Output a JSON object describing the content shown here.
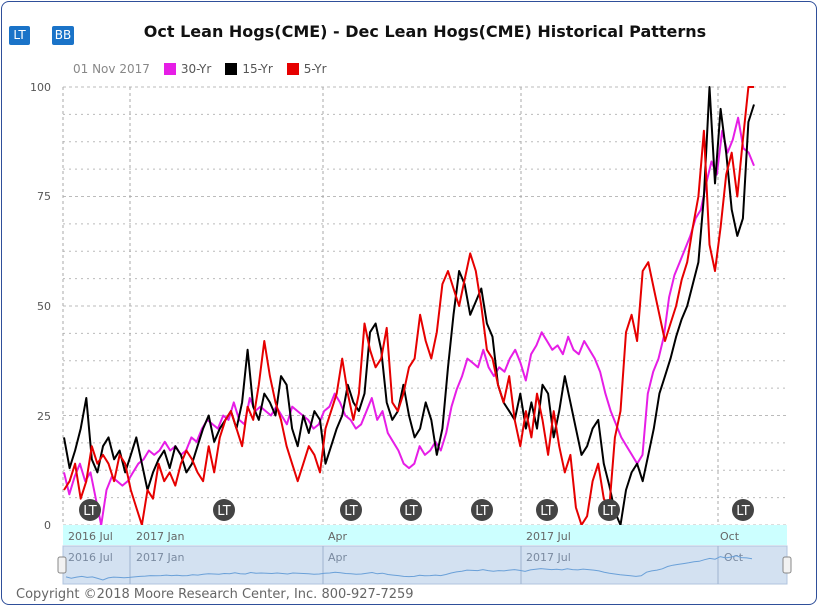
{
  "buttons": {
    "lt": "LT",
    "bb": "BB"
  },
  "title": "Oct Lean Hogs(CME) - Dec Lean Hogs(CME) Historical Patterns",
  "legend": {
    "date": "01 Nov 2017",
    "items": [
      "30-Yr",
      "15-Yr",
      "5-Yr"
    ]
  },
  "colors": {
    "s30": "#e61ee6",
    "s15": "#000000",
    "s5": "#e60000",
    "band": "#ccffff",
    "nav": "#b8cde8"
  },
  "axis": {
    "y_ticks": [
      "100",
      "75",
      "50",
      "25",
      "0"
    ],
    "x_ticks": [
      "2016 Jul",
      "2017 Jan",
      "Apr",
      "2017 Jul",
      "Oct"
    ],
    "nav_ticks": [
      "2016 Jul",
      "2017 Jan",
      "Apr",
      "2017 Jul",
      "Oct"
    ]
  },
  "markers": [
    "LT",
    "LT",
    "LT",
    "LT",
    "LT",
    "LT",
    "LT",
    "LT"
  ],
  "copyright": "Copyright ©2018 Moore Research Center, Inc. 800-927-7259",
  "chart_data": {
    "type": "line",
    "ylim": [
      0,
      100
    ],
    "x_ticks": [
      "2016 Jul",
      "2017 Jan",
      "Apr",
      "2017 Jul",
      "Oct"
    ],
    "series": [
      {
        "name": "30-Yr",
        "values": [
          12,
          7,
          11,
          14,
          10,
          12,
          6,
          0,
          8,
          11,
          10,
          9,
          10,
          12,
          14,
          15,
          17,
          16,
          17,
          19,
          17,
          18,
          16,
          17,
          20,
          19,
          22,
          24,
          23,
          22,
          25,
          24,
          28,
          24,
          23,
          29,
          26,
          27,
          26,
          25,
          27,
          25,
          23,
          27,
          26,
          25,
          24,
          22,
          23,
          26,
          27,
          30,
          28,
          25,
          24,
          22,
          23,
          26,
          29,
          24,
          26,
          21,
          19,
          17,
          14,
          13,
          14,
          18,
          16,
          17,
          19,
          17,
          21,
          27,
          31,
          34,
          38,
          37,
          36,
          40,
          36,
          34,
          36,
          35,
          38,
          40,
          37,
          33,
          39,
          41,
          44,
          42,
          40,
          41,
          39,
          43,
          40,
          39,
          42,
          40,
          38,
          35,
          30,
          26,
          23,
          20,
          18,
          16,
          14,
          16,
          30,
          35,
          38,
          43,
          52,
          57,
          60,
          63,
          66,
          70,
          72,
          78,
          83,
          80,
          90,
          85,
          88,
          93,
          86,
          85,
          82
        ]
      },
      {
        "name": "15-Yr",
        "values": [
          20,
          13,
          17,
          22,
          29,
          15,
          12,
          18,
          20,
          15,
          17,
          12,
          16,
          20,
          14,
          8,
          12,
          15,
          17,
          13,
          18,
          16,
          12,
          14,
          18,
          22,
          25,
          19,
          22,
          24,
          26,
          22,
          28,
          40,
          27,
          24,
          30,
          28,
          25,
          34,
          32,
          22,
          18,
          25,
          21,
          26,
          24,
          14,
          18,
          22,
          25,
          32,
          28,
          26,
          30,
          44,
          46,
          40,
          28,
          24,
          26,
          32,
          25,
          20,
          22,
          28,
          24,
          16,
          22,
          36,
          48,
          58,
          55,
          48,
          51,
          54,
          46,
          43,
          32,
          28,
          26,
          24,
          30,
          22,
          28,
          22,
          32,
          30,
          20,
          26,
          34,
          28,
          22,
          16,
          18,
          22,
          24,
          14,
          9,
          3,
          0,
          8,
          12,
          14,
          10,
          16,
          22,
          30,
          34,
          38,
          43,
          47,
          50,
          55,
          60,
          75,
          100,
          78,
          95,
          85,
          72,
          66,
          70,
          92,
          96
        ]
      },
      {
        "name": "5-Yr",
        "values": [
          8,
          10,
          14,
          6,
          10,
          18,
          14,
          16,
          14,
          10,
          16,
          14,
          8,
          4,
          0,
          8,
          6,
          14,
          10,
          12,
          9,
          14,
          17,
          15,
          12,
          10,
          18,
          12,
          20,
          24,
          26,
          22,
          18,
          27,
          24,
          32,
          42,
          34,
          28,
          24,
          18,
          14,
          10,
          14,
          18,
          16,
          12,
          22,
          26,
          30,
          38,
          30,
          24,
          30,
          46,
          40,
          36,
          38,
          45,
          28,
          26,
          30,
          36,
          38,
          48,
          42,
          38,
          44,
          55,
          58,
          54,
          50,
          56,
          62,
          58,
          50,
          40,
          38,
          32,
          28,
          34,
          24,
          18,
          26,
          20,
          30,
          24,
          16,
          26,
          18,
          12,
          16,
          4,
          0,
          2,
          10,
          14,
          6,
          4,
          20,
          26,
          44,
          48,
          42,
          58,
          60,
          54,
          48,
          42,
          46,
          50,
          56,
          60,
          68,
          75,
          90,
          64,
          58,
          68,
          80,
          85,
          75,
          88,
          100,
          100
        ]
      }
    ]
  }
}
